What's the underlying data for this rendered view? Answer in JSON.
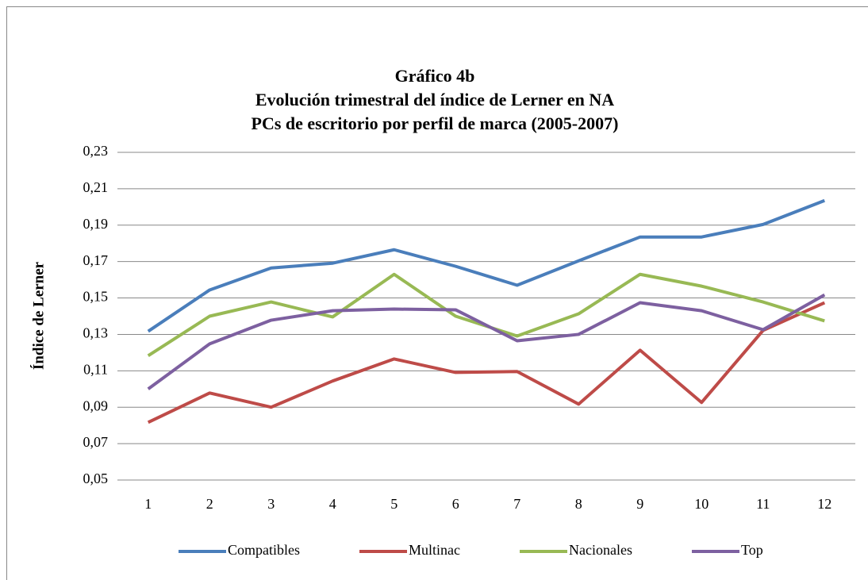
{
  "chart_data": {
    "type": "line",
    "title": [
      "Gráfico 4b",
      "Evolución trimestral del índice de Lerner en NA",
      "PCs de escritorio por perfil de marca (2005-2007)"
    ],
    "y_label": "Índice de Lerner",
    "categories": [
      "1",
      "2",
      "3",
      "4",
      "5",
      "6",
      "7",
      "8",
      "9",
      "10",
      "11",
      "12"
    ],
    "series": [
      {
        "name": "Compatibles",
        "color": "#4a7ebb",
        "values": [
          0.1317,
          0.1544,
          0.1665,
          0.1691,
          0.1765,
          0.1674,
          0.157,
          0.1704,
          0.1835,
          0.1835,
          0.1904,
          0.2035
        ]
      },
      {
        "name": "Multinac",
        "color": "#be4b48",
        "values": [
          0.0817,
          0.0978,
          0.09,
          0.1044,
          0.1165,
          0.1091,
          0.1096,
          0.0917,
          0.1213,
          0.0926,
          0.1322,
          0.1474
        ]
      },
      {
        "name": "Nacionales",
        "color": "#98b954",
        "values": [
          0.1183,
          0.14,
          0.1478,
          0.1396,
          0.163,
          0.14,
          0.1291,
          0.1413,
          0.163,
          0.1565,
          0.1478,
          0.1374
        ]
      },
      {
        "name": "Top",
        "color": "#7d60a0",
        "values": [
          0.1,
          0.1248,
          0.1378,
          0.143,
          0.1439,
          0.1435,
          0.1265,
          0.13,
          0.1474,
          0.143,
          0.1326,
          0.1517
        ]
      }
    ],
    "ylim": [
      0.05,
      0.23
    ],
    "yticks": [
      {
        "value": 0.05,
        "label": "0,05"
      },
      {
        "value": 0.07,
        "label": "0,07"
      },
      {
        "value": 0.09,
        "label": "0,09"
      },
      {
        "value": 0.11,
        "label": "0,11"
      },
      {
        "value": 0.13,
        "label": "0,13"
      },
      {
        "value": 0.15,
        "label": "0,15"
      },
      {
        "value": 0.17,
        "label": "0,17"
      },
      {
        "value": 0.19,
        "label": "0,19"
      },
      {
        "value": 0.21,
        "label": "0,21"
      },
      {
        "value": 0.23,
        "label": "0,23"
      }
    ],
    "grid": true,
    "legend": "bottom"
  }
}
